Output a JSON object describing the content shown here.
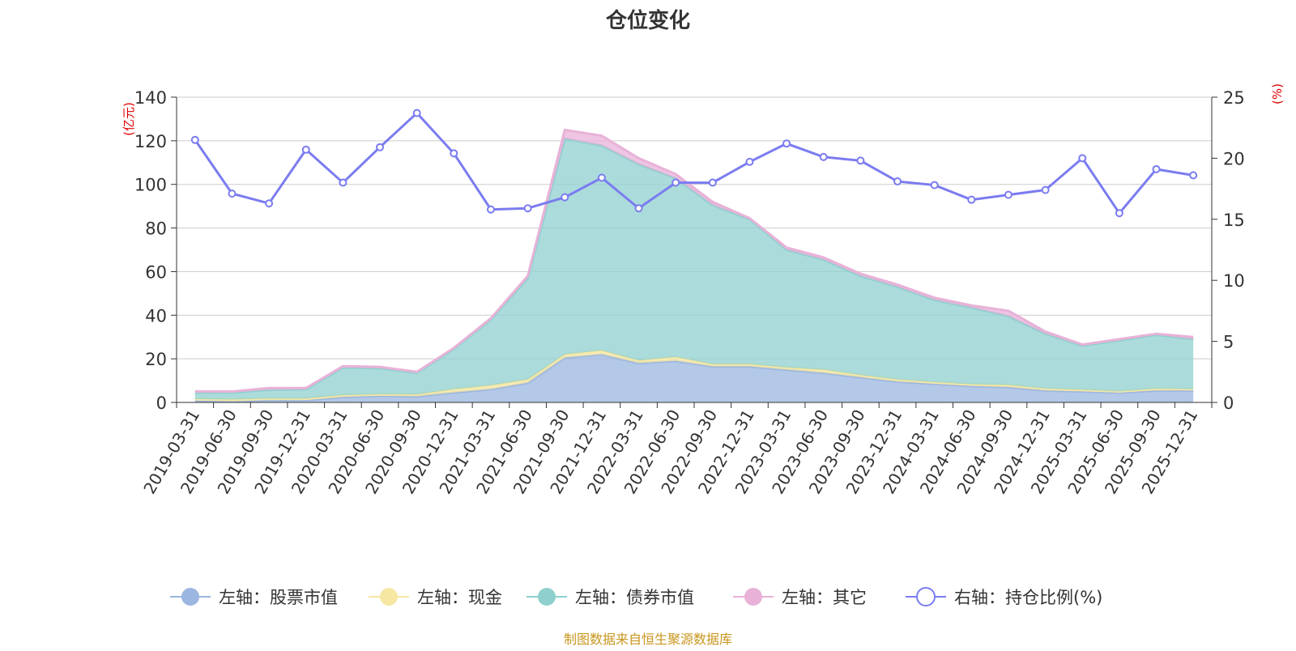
{
  "chart_data": {
    "type": "area",
    "title": "仓位变化",
    "left_axis_label": "(亿元)",
    "right_axis_label": "(%)",
    "left_ylim": [
      0,
      140
    ],
    "left_ticks": [
      0,
      20,
      40,
      60,
      80,
      100,
      120,
      140
    ],
    "right_ylim": [
      0,
      25
    ],
    "right_ticks": [
      0,
      5,
      10,
      15,
      20,
      25
    ],
    "grid": true,
    "legend_position": "bottom",
    "footer": "制图数据来自恒生聚源数据库",
    "categories": [
      "2019-03-31",
      "2019-06-30",
      "2019-09-30",
      "2019-12-31",
      "2020-03-31",
      "2020-06-30",
      "2020-09-30",
      "2020-12-31",
      "2021-03-31",
      "2021-06-30",
      "2021-09-30",
      "2021-12-31",
      "2022-03-31",
      "2022-06-30",
      "2022-09-30",
      "2022-12-31",
      "2023-03-31",
      "2023-06-30",
      "2023-09-30",
      "2023-12-31",
      "2024-03-31",
      "2024-06-30",
      "2024-09-30",
      "2024-12-31",
      "2025-03-31",
      "2025-06-30",
      "2025-09-30",
      "2025-12-31"
    ],
    "series": [
      {
        "name": "左轴：股票市值",
        "axis": "left",
        "stacked": true,
        "color": "#9bb6e0",
        "values": [
          0.8,
          0.5,
          1.0,
          1.0,
          2.5,
          3.0,
          2.8,
          4.5,
          6.0,
          9.0,
          20.5,
          22.0,
          18.0,
          19.0,
          16.5,
          16.5,
          15.0,
          13.5,
          11.5,
          9.5,
          8.5,
          7.5,
          7.0,
          5.5,
          5.0,
          4.5,
          5.5,
          5.5
        ]
      },
      {
        "name": "左轴：现金",
        "axis": "left",
        "stacked": true,
        "color": "#f6e7a3",
        "values": [
          0.7,
          0.8,
          0.8,
          0.8,
          0.8,
          0.7,
          0.8,
          1.5,
          1.8,
          1.5,
          1.5,
          1.8,
          1.2,
          1.8,
          1.0,
          1.0,
          1.0,
          1.5,
          1.0,
          1.0,
          0.8,
          0.8,
          1.0,
          0.8,
          0.8,
          0.5,
          0.8,
          0.5
        ]
      },
      {
        "name": "左轴：债券市值",
        "axis": "left",
        "stacked": true,
        "color": "#8fd0cf",
        "values": [
          3.0,
          3.2,
          4.0,
          4.2,
          12.7,
          12.0,
          9.9,
          18.5,
          30.2,
          46.5,
          99.0,
          94.0,
          90.0,
          82.0,
          73.0,
          66.5,
          54.0,
          50.5,
          45.5,
          42.5,
          37.7,
          35.2,
          31.5,
          25.2,
          20.2,
          23.5,
          24.7,
          23.0
        ]
      },
      {
        "name": "左轴：其它",
        "axis": "left",
        "stacked": true,
        "color": "#e8b2d8",
        "values": [
          0.5,
          0.5,
          0.8,
          0.6,
          0.6,
          0.6,
          0.5,
          0.5,
          0.6,
          1.0,
          4.0,
          4.5,
          2.8,
          1.9,
          1.5,
          0.5,
          1.0,
          1.0,
          1.0,
          1.0,
          1.0,
          1.0,
          2.5,
          1.0,
          0.5,
          0.5,
          0.5,
          1.0
        ]
      },
      {
        "name": "右轴：持仓比例(%)",
        "axis": "right",
        "stacked": false,
        "color": "#7b7cf0",
        "values": [
          21.5,
          17.1,
          16.3,
          20.7,
          18.0,
          20.9,
          23.7,
          20.4,
          15.8,
          15.9,
          16.8,
          18.4,
          15.9,
          18.0,
          18.0,
          19.7,
          21.2,
          20.1,
          19.8,
          18.1,
          17.8,
          16.6,
          17.0,
          17.4,
          20.0,
          15.5,
          19.1,
          18.6
        ]
      }
    ]
  }
}
